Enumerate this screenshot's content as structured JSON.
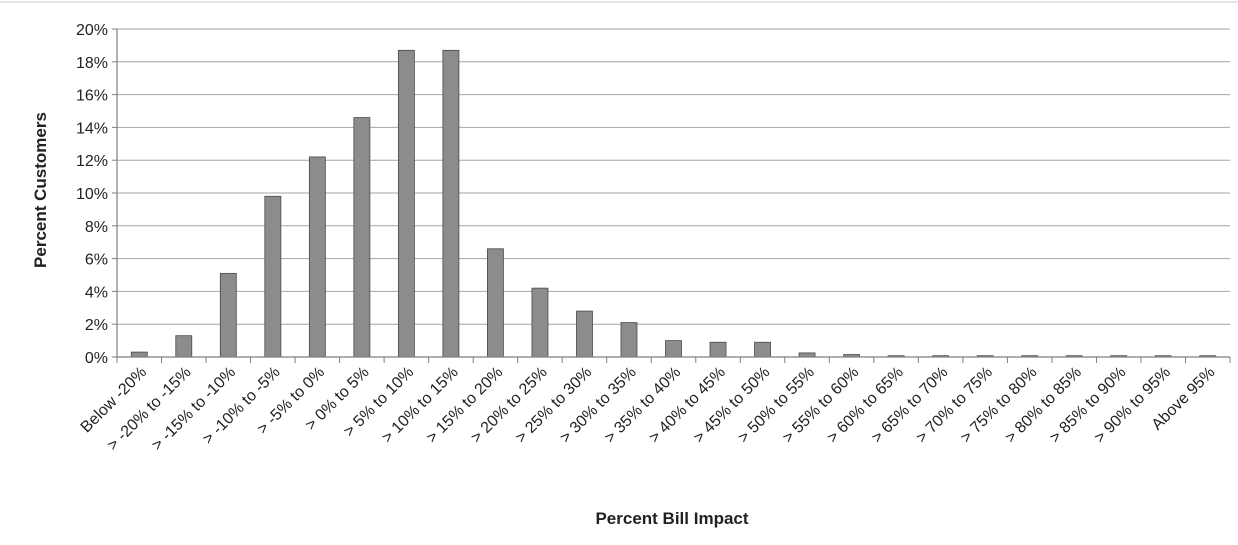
{
  "chart_data": {
    "type": "bar",
    "title": "",
    "xlabel": "Percent Bill Impact",
    "ylabel": "Percent Customers",
    "ylim": [
      0,
      20
    ],
    "y_ticks": [
      "0%",
      "2%",
      "4%",
      "6%",
      "8%",
      "10%",
      "12%",
      "14%",
      "16%",
      "18%",
      "20%"
    ],
    "grid": true,
    "legend": "none",
    "categories": [
      "Below -20%",
      "> -20% to -15%",
      "> -15% to -10%",
      "> -10% to -5%",
      "> -5% to 0%",
      "> 0% to 5%",
      "> 5% to 10%",
      "> 10% to 15%",
      "> 15% to 20%",
      "> 20% to 25%",
      "> 25% to 30%",
      "> 30% to 35%",
      "> 35% to 40%",
      "> 40% to 45%",
      "> 45% to 50%",
      "> 50% to 55%",
      "> 55% to 60%",
      "> 60% to 65%",
      "> 65% to 70%",
      "> 70% to 75%",
      "> 75% to 80%",
      "> 80% to 85%",
      "> 85% to 90%",
      "> 90% to 95%",
      "Above 95%"
    ],
    "values": [
      0.3,
      1.3,
      5.1,
      9.8,
      12.2,
      14.6,
      18.7,
      18.7,
      6.6,
      4.2,
      2.8,
      2.1,
      1.0,
      0.9,
      0.9,
      0.25,
      0.15,
      0.08,
      0.08,
      0.08,
      0.08,
      0.08,
      0.08,
      0.08,
      0.08
    ],
    "colors": {
      "bar": "#8c8c8c",
      "bar_stroke": "#4a4a4a",
      "grid": "#a6a6a6",
      "axis": "#7f7f7f"
    }
  }
}
